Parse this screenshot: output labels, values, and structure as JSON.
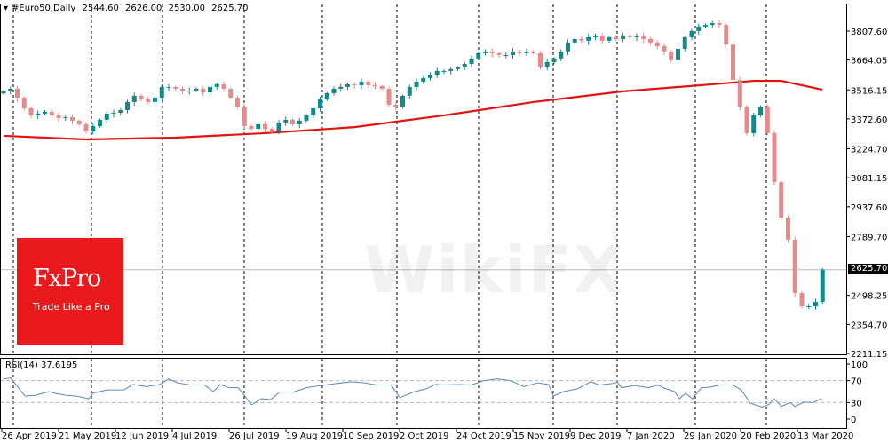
{
  "header": {
    "arrow_icon": "triangle-down-icon",
    "symbol": "#Euro50,Daily",
    "open": "2544.60",
    "high": "2626.00",
    "low": "2530.00",
    "close": "2625.70"
  },
  "current_price_label": "2625.70",
  "watermark": {
    "text": "WikiFX"
  },
  "logo": {
    "brand": "FxPro",
    "tagline": "Trade Like a Pro",
    "color": "#e9191c"
  },
  "colors": {
    "bull": "#138a8a",
    "bear": "#e88a8a",
    "ma": "#e3140f",
    "rsi": "#5b87c0",
    "grid": "#000000"
  },
  "chart_data": [
    {
      "type": "candlestick",
      "title": "#Euro50,Daily",
      "ylim": [
        2211.15,
        3880
      ],
      "y_ticks": [
        "3807.60",
        "3664.05",
        "3516.15",
        "3372.60",
        "3224.70",
        "3081.15",
        "2937.60",
        "2789.70",
        "2498.25",
        "2354.70",
        "2211.15"
      ],
      "x_ticks": [
        "26 Apr 2019",
        "21 May 2019",
        "12 Jun 2019",
        "4 Jul 2019",
        "26 Jul 2019",
        "19 Aug 2019",
        "10 Sep 2019",
        "2 Oct 2019",
        "24 Oct 2019",
        "15 Nov 2019",
        "9 Dec 2019",
        "7 Jan 2020",
        "29 Jan 2020",
        "20 Feb 2020",
        "13 Mar 2020"
      ],
      "grid": "vertical dashed",
      "closes": [
        3509,
        3522,
        3478,
        3425,
        3390,
        3399,
        3408,
        3390,
        3377,
        3381,
        3364,
        3346,
        3311,
        3337,
        3368,
        3399,
        3403,
        3416,
        3456,
        3487,
        3469,
        3456,
        3478,
        3531,
        3531,
        3522,
        3509,
        3513,
        3522,
        3504,
        3531,
        3544,
        3522,
        3478,
        3434,
        3337,
        3324,
        3346,
        3324,
        3311,
        3355,
        3368,
        3346,
        3364,
        3390,
        3425,
        3469,
        3500,
        3522,
        3531,
        3544,
        3540,
        3557,
        3540,
        3535,
        3522,
        3443,
        3434,
        3487,
        3531,
        3557,
        3575,
        3592,
        3610,
        3610,
        3619,
        3628,
        3645,
        3672,
        3698,
        3707,
        3698,
        3689,
        3689,
        3707,
        3698,
        3707,
        3698,
        3632,
        3654,
        3672,
        3707,
        3751,
        3768,
        3760,
        3777,
        3786,
        3760,
        3777,
        3768,
        3786,
        3777,
        3786,
        3768,
        3751,
        3733,
        3707,
        3663,
        3720,
        3777,
        3808,
        3830,
        3838,
        3847,
        3838,
        3742,
        3566,
        3434,
        3302,
        3390,
        3434,
        3302,
        3060,
        2884,
        2774,
        2510,
        2444,
        2444,
        2466,
        2625.7
      ],
      "moving_average": {
        "points": [
          [
            0,
            3289
          ],
          [
            12,
            3271
          ],
          [
            25,
            3280
          ],
          [
            38,
            3302
          ],
          [
            51,
            3332
          ],
          [
            64,
            3390
          ],
          [
            77,
            3456
          ],
          [
            90,
            3509
          ],
          [
            103,
            3544
          ],
          [
            109,
            3561
          ],
          [
            113,
            3561
          ],
          [
            119,
            3517
          ]
        ]
      },
      "current_price": 2625.7
    },
    {
      "type": "line",
      "title": "RSI(14) 37.6195",
      "ylim": [
        0,
        100
      ],
      "y_ticks": [
        "100",
        "70",
        "30",
        "0"
      ],
      "levels": [
        70,
        30
      ],
      "points": [
        [
          0,
          73
        ],
        [
          1,
          75
        ],
        [
          1.8,
          63
        ],
        [
          3.1,
          42
        ],
        [
          4.6,
          43
        ],
        [
          6.6,
          50
        ],
        [
          7.9,
          46
        ],
        [
          9.2,
          43
        ],
        [
          10.5,
          42
        ],
        [
          12.4,
          37
        ],
        [
          13,
          47
        ],
        [
          15,
          53
        ],
        [
          17.5,
          53
        ],
        [
          18.8,
          63
        ],
        [
          20.8,
          59
        ],
        [
          22.7,
          63
        ],
        [
          24,
          73
        ],
        [
          25.3,
          66
        ],
        [
          27.2,
          62
        ],
        [
          29.2,
          62
        ],
        [
          30.5,
          50
        ],
        [
          31.5,
          63
        ],
        [
          32.8,
          57
        ],
        [
          34.1,
          57
        ],
        [
          35,
          43
        ],
        [
          36,
          26
        ],
        [
          37.5,
          37
        ],
        [
          38.8,
          35
        ],
        [
          40.1,
          49
        ],
        [
          42.1,
          49
        ],
        [
          44,
          57
        ],
        [
          46.6,
          62
        ],
        [
          48.5,
          65
        ],
        [
          50.5,
          68
        ],
        [
          52.4,
          66
        ],
        [
          54.3,
          62
        ],
        [
          56.3,
          62
        ],
        [
          57.6,
          39
        ],
        [
          59.5,
          49
        ],
        [
          61.4,
          55
        ],
        [
          62.7,
          63
        ],
        [
          64,
          62
        ],
        [
          65.9,
          63
        ],
        [
          67.9,
          62
        ],
        [
          69.8,
          70
        ],
        [
          71.7,
          73
        ],
        [
          73.7,
          70
        ],
        [
          75.6,
          59
        ],
        [
          77.6,
          66
        ],
        [
          79.2,
          63
        ],
        [
          79.9,
          42
        ],
        [
          81.4,
          50
        ],
        [
          83.4,
          55
        ],
        [
          85.3,
          68
        ],
        [
          86.6,
          62
        ],
        [
          88.5,
          65
        ],
        [
          89.2,
          67
        ],
        [
          89.8,
          57
        ],
        [
          91.7,
          61
        ],
        [
          93.7,
          57
        ],
        [
          95,
          62
        ],
        [
          96.3,
          55
        ],
        [
          97.5,
          50
        ],
        [
          98.2,
          37
        ],
        [
          99.1,
          47
        ],
        [
          100.1,
          37
        ],
        [
          101.4,
          57
        ],
        [
          102.7,
          58
        ],
        [
          104,
          62
        ],
        [
          106,
          62
        ],
        [
          107.2,
          53
        ],
        [
          108.5,
          29
        ],
        [
          110.2,
          22
        ],
        [
          111.1,
          26
        ],
        [
          112,
          37
        ],
        [
          113,
          23
        ],
        [
          114.3,
          30
        ],
        [
          115,
          23
        ],
        [
          116.3,
          31
        ],
        [
          117.6,
          30
        ],
        [
          118.9,
          37.6
        ]
      ]
    }
  ]
}
